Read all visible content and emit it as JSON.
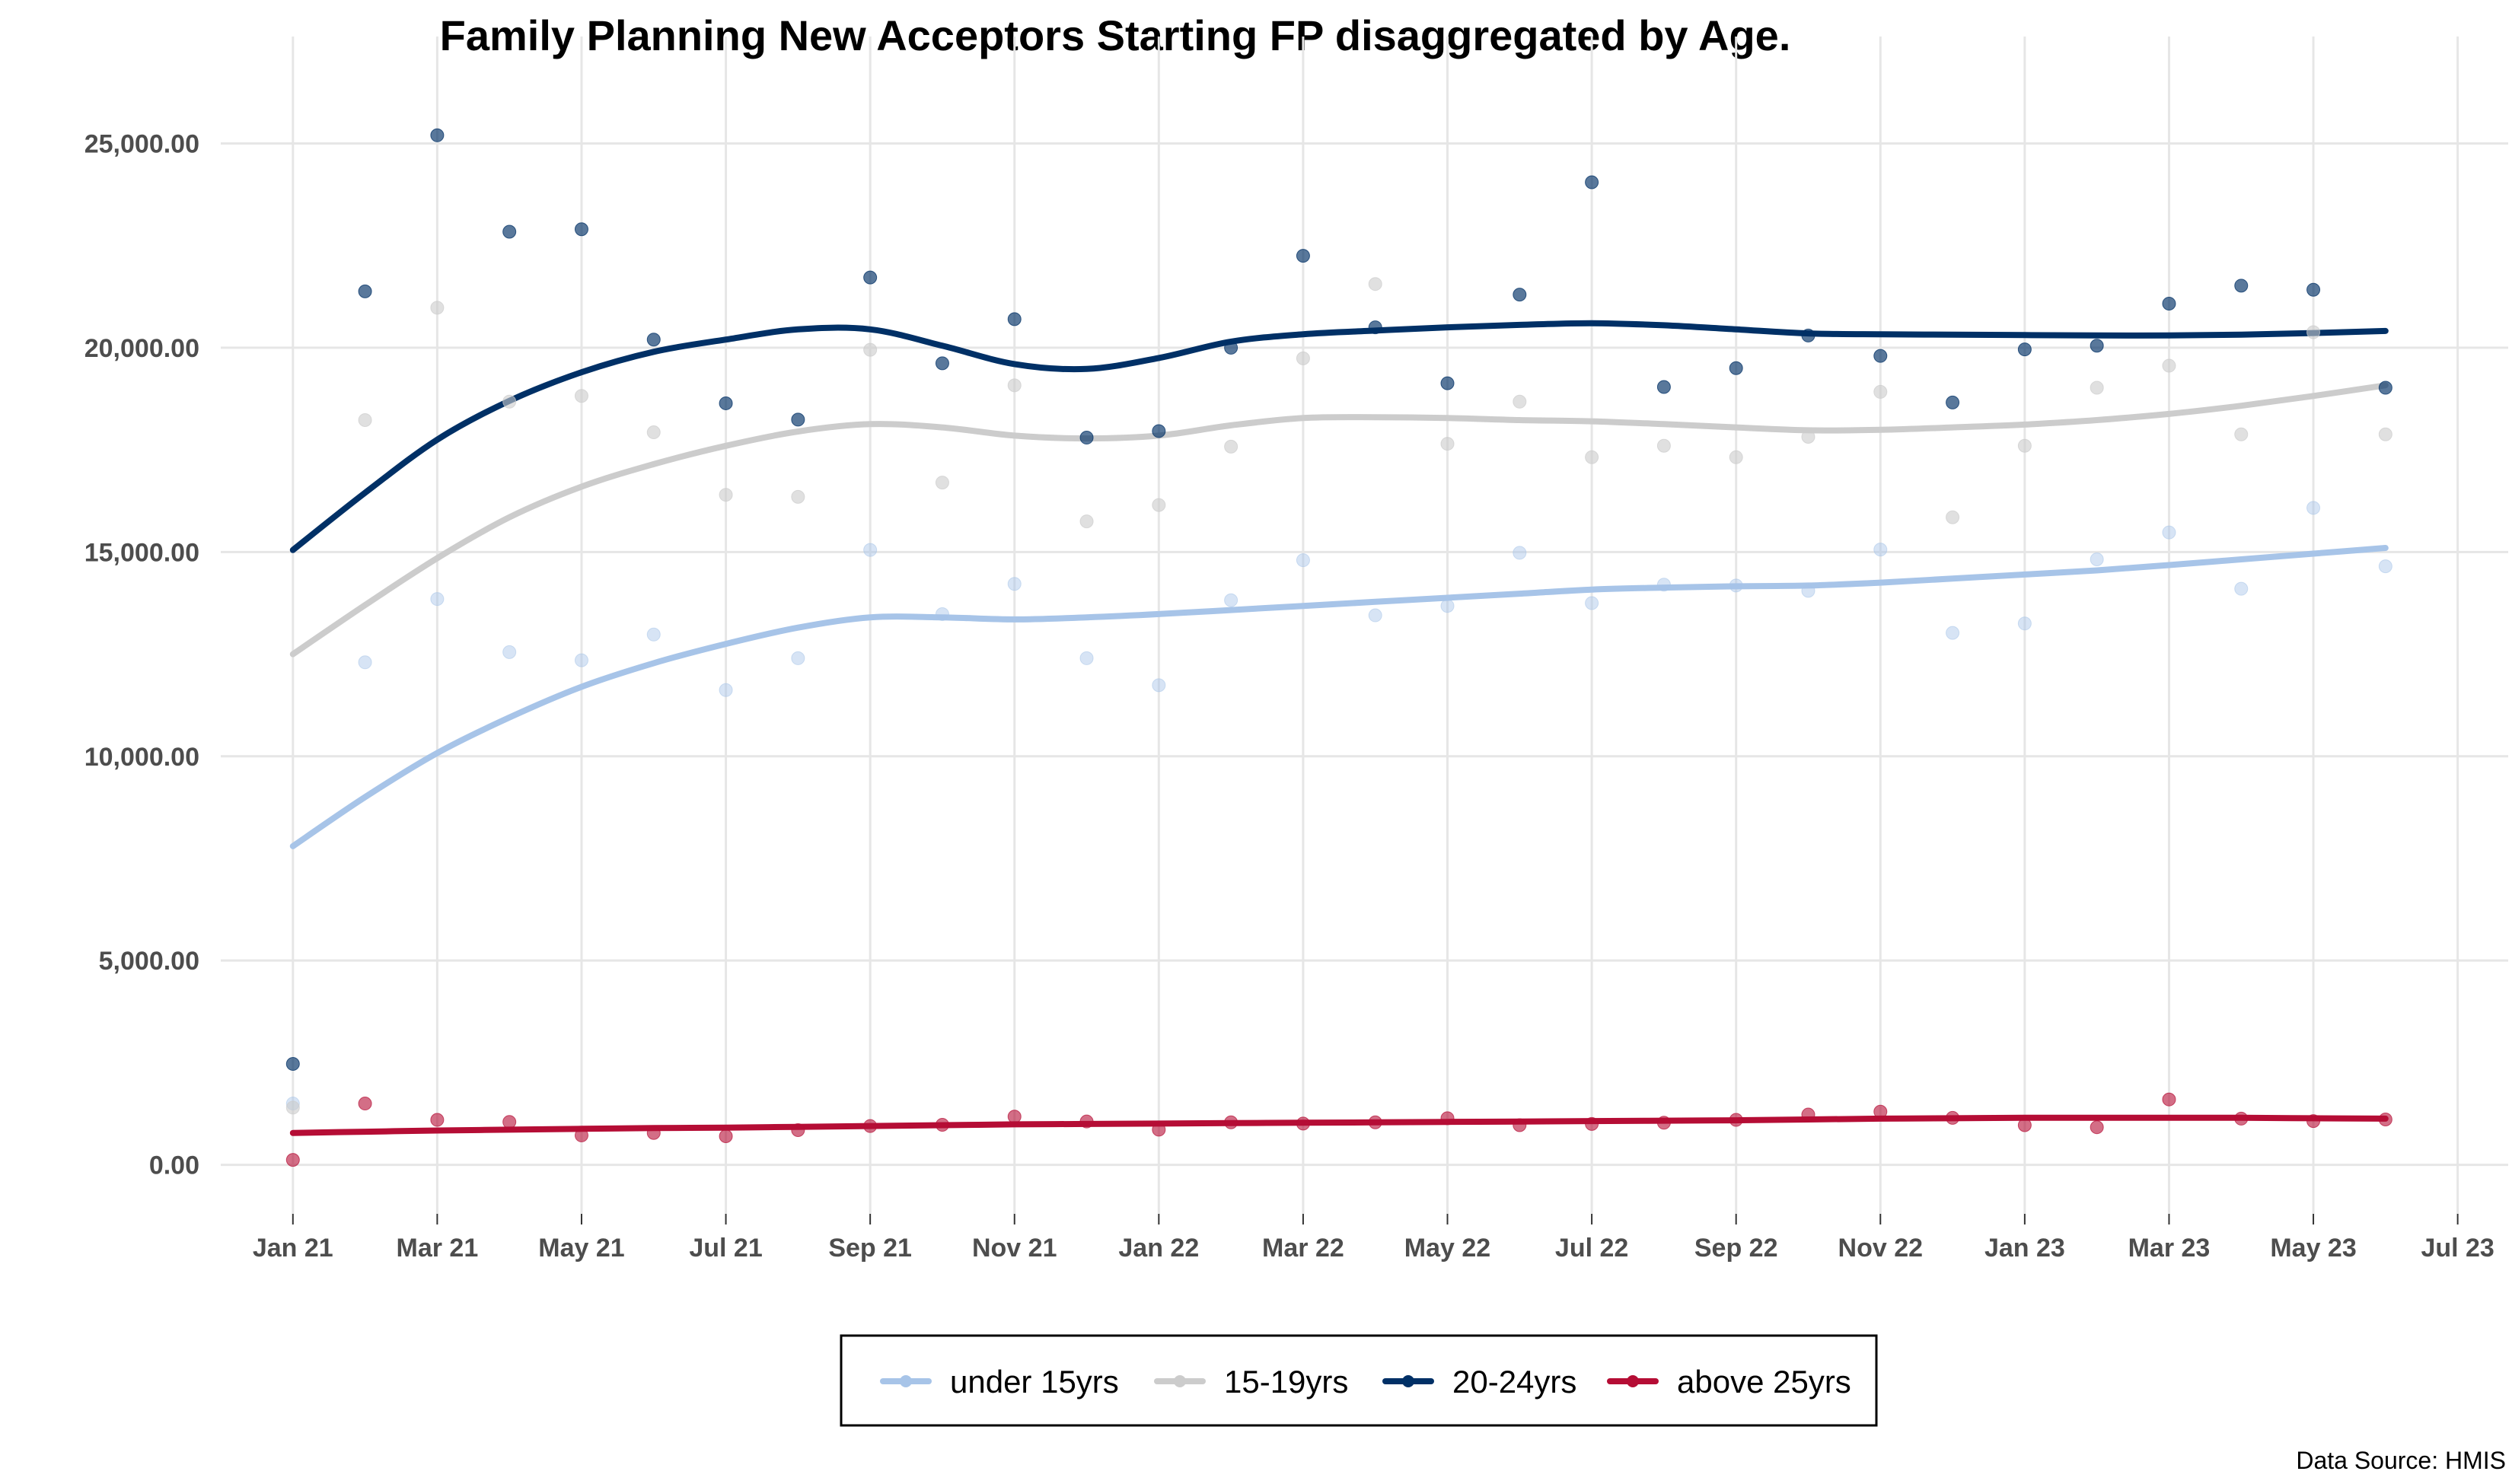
{
  "chart_data": {
    "type": "line",
    "title": "Family Planning New Acceptors Starting FP disaggregated by Age.",
    "xlabel": "",
    "ylabel": "",
    "source": "Data Source: HMIS",
    "x": [
      "2021-01",
      "2021-02",
      "2021-03",
      "2021-04",
      "2021-05",
      "2021-06",
      "2021-07",
      "2021-08",
      "2021-09",
      "2021-10",
      "2021-11",
      "2021-12",
      "2022-01",
      "2022-02",
      "2022-03",
      "2022-04",
      "2022-05",
      "2022-06",
      "2022-07",
      "2022-08",
      "2022-09",
      "2022-10",
      "2022-11",
      "2022-12",
      "2023-01",
      "2023-02",
      "2023-03",
      "2023-04",
      "2023-05",
      "2023-06"
    ],
    "x_ticks": [
      "2021-01",
      "2021-03",
      "2021-05",
      "2021-07",
      "2021-09",
      "2021-11",
      "2022-01",
      "2022-03",
      "2022-05",
      "2022-07",
      "2022-09",
      "2022-11",
      "2023-01",
      "2023-03",
      "2023-05",
      "2023-07"
    ],
    "x_tick_labels": [
      "Jan 21",
      "Mar 21",
      "May 21",
      "Jul 21",
      "Sep 21",
      "Nov 21",
      "Jan 22",
      "Mar 22",
      "May 22",
      "Jul 22",
      "Sep 22",
      "Nov 22",
      "Jan 23",
      "Mar 23",
      "May 23",
      "Jul 23"
    ],
    "xlim": [
      "2020-12",
      "2023-07"
    ],
    "ylim": [
      -1200,
      26500
    ],
    "y_ticks": [
      0,
      5000,
      10000,
      15000,
      20000,
      25000
    ],
    "y_tick_labels": [
      "0.00",
      "5,000.00",
      "10,000.00",
      "15,000.00",
      "20,000.00",
      "25,000.00"
    ],
    "grid": true,
    "legend": {
      "position": "bottom"
    },
    "series": [
      {
        "name": "under 15yrs",
        "color": "#a7c4e8",
        "point_opacity": 0.45,
        "values": [
          1500,
          12300,
          13850,
          12550,
          12350,
          12980,
          11620,
          12400,
          15050,
          13480,
          14220,
          12400,
          11740,
          13820,
          14800,
          13450,
          13680,
          14980,
          13750,
          14200,
          14180,
          14050,
          15060,
          13020,
          13250,
          14820,
          15480,
          14100,
          16080,
          14650
        ],
        "trend": [
          7800,
          9000,
          10080,
          10950,
          11700,
          12280,
          12750,
          13150,
          13400,
          13400,
          13350,
          13400,
          13480,
          13580,
          13680,
          13780,
          13880,
          13980,
          14080,
          14130,
          14160,
          14180,
          14250,
          14350,
          14450,
          14550,
          14680,
          14820,
          14960,
          15100
        ]
      },
      {
        "name": "15-19yrs",
        "color": "#cccccc",
        "point_opacity": 0.6,
        "values": [
          1400,
          18230,
          20980,
          18680,
          18820,
          17930,
          16400,
          16350,
          19950,
          16700,
          19080,
          15750,
          16150,
          17580,
          19740,
          21560,
          17650,
          18680,
          17320,
          17600,
          17320,
          17820,
          18920,
          15850,
          17600,
          19020,
          19560,
          17880,
          20380,
          17880
        ],
        "trend": [
          12500,
          13700,
          14850,
          15850,
          16600,
          17150,
          17600,
          17950,
          18130,
          18050,
          17850,
          17780,
          17850,
          18100,
          18280,
          18300,
          18280,
          18230,
          18200,
          18130,
          18050,
          17980,
          17990,
          18050,
          18120,
          18230,
          18380,
          18580,
          18820,
          19080
        ]
      },
      {
        "name": "20-24yrs",
        "color": "#003066",
        "point_opacity": 0.65,
        "values": [
          2470,
          21380,
          25200,
          22840,
          22900,
          20200,
          18640,
          18240,
          21720,
          19620,
          20700,
          17800,
          17960,
          20000,
          22250,
          20500,
          19130,
          21300,
          24050,
          19040,
          19500,
          20300,
          19800,
          18660,
          19960,
          20050,
          21080,
          21520,
          21420,
          19020
        ],
        "trend": [
          15050,
          16450,
          17750,
          18700,
          19400,
          19900,
          20200,
          20450,
          20450,
          20050,
          19600,
          19480,
          19750,
          20150,
          20330,
          20420,
          20500,
          20560,
          20600,
          20550,
          20450,
          20350,
          20330,
          20320,
          20310,
          20300,
          20300,
          20320,
          20360,
          20410
        ]
      },
      {
        "name": "above 25yrs",
        "color": "#b50d35",
        "point_opacity": 0.6,
        "values": [
          120,
          1500,
          1100,
          1050,
          720,
          780,
          700,
          850,
          950,
          980,
          1180,
          1060,
          860,
          1040,
          1010,
          1040,
          1140,
          970,
          1000,
          1030,
          1100,
          1230,
          1300,
          1150,
          970,
          920,
          1600,
          1130,
          1070,
          1110
        ],
        "trend": [
          780,
          810,
          840,
          860,
          880,
          900,
          910,
          930,
          950,
          970,
          990,
          1000,
          1010,
          1020,
          1030,
          1040,
          1050,
          1060,
          1070,
          1080,
          1090,
          1110,
          1130,
          1140,
          1150,
          1150,
          1150,
          1150,
          1140,
          1130
        ]
      }
    ]
  }
}
